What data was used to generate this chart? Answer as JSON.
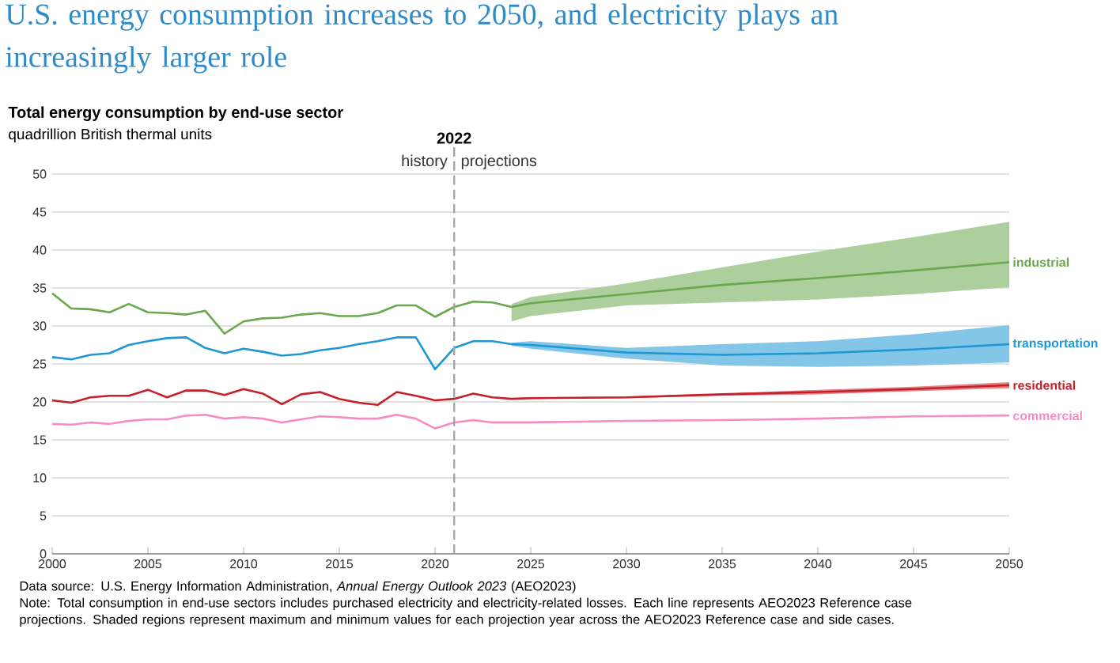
{
  "chart_data": {
    "type": "line",
    "title": "U.S. energy consumption increases to 2050, and electricity plays an increasingly larger role",
    "subtitle": "Total energy consumption by end-use sector",
    "x": [
      2000,
      2001,
      2002,
      2003,
      2004,
      2005,
      2006,
      2007,
      2008,
      2009,
      2010,
      2011,
      2012,
      2013,
      2014,
      2015,
      2016,
      2017,
      2018,
      2019,
      2020,
      2021,
      2022,
      2023,
      2024,
      2025,
      2030,
      2035,
      2040,
      2045,
      2050
    ],
    "series": [
      {
        "name": "industrial",
        "color": "#6aa84f",
        "values": [
          34.3,
          32.3,
          32.2,
          31.8,
          32.9,
          31.8,
          31.7,
          31.5,
          32.0,
          29.0,
          30.6,
          31.0,
          31.1,
          31.5,
          31.7,
          31.3,
          31.3,
          31.7,
          32.7,
          32.7,
          31.2,
          32.5,
          33.2,
          33.1,
          32.5,
          33.0,
          34.2,
          35.4,
          36.3,
          37.3,
          38.4
        ],
        "lower": [
          null,
          null,
          null,
          null,
          null,
          null,
          null,
          null,
          null,
          null,
          null,
          null,
          null,
          null,
          null,
          null,
          null,
          null,
          null,
          null,
          null,
          null,
          null,
          null,
          30.6,
          31.3,
          32.7,
          33.1,
          33.5,
          34.2,
          35.1
        ],
        "upper": [
          null,
          null,
          null,
          null,
          null,
          null,
          null,
          null,
          null,
          null,
          null,
          null,
          null,
          null,
          null,
          null,
          null,
          null,
          null,
          null,
          null,
          null,
          null,
          null,
          32.9,
          33.8,
          35.6,
          37.7,
          39.8,
          41.7,
          43.7
        ]
      },
      {
        "name": "transportation",
        "color": "#1f97d4",
        "values": [
          25.9,
          25.6,
          26.2,
          26.4,
          27.5,
          28.0,
          28.4,
          28.5,
          27.1,
          26.4,
          27.0,
          26.6,
          26.1,
          26.3,
          26.8,
          27.1,
          27.6,
          28.0,
          28.5,
          28.5,
          24.3,
          27.1,
          28.0,
          28.0,
          27.6,
          27.5,
          26.5,
          26.2,
          26.4,
          26.9,
          27.6
        ],
        "lower": [
          null,
          null,
          null,
          null,
          null,
          null,
          null,
          null,
          null,
          null,
          null,
          null,
          null,
          null,
          null,
          null,
          null,
          null,
          null,
          null,
          null,
          null,
          null,
          null,
          27.4,
          27.0,
          25.7,
          24.8,
          24.6,
          24.8,
          25.2
        ],
        "upper": [
          null,
          null,
          null,
          null,
          null,
          null,
          null,
          null,
          null,
          null,
          null,
          null,
          null,
          null,
          null,
          null,
          null,
          null,
          null,
          null,
          null,
          null,
          null,
          null,
          27.8,
          28.0,
          27.1,
          27.6,
          28.0,
          28.9,
          30.1
        ]
      },
      {
        "name": "residential",
        "color": "#c8202a",
        "values": [
          20.2,
          19.9,
          20.6,
          20.8,
          20.8,
          21.6,
          20.6,
          21.5,
          21.5,
          20.9,
          21.7,
          21.1,
          19.7,
          21.0,
          21.3,
          20.4,
          19.9,
          19.6,
          21.3,
          20.8,
          20.2,
          20.4,
          21.1,
          20.6,
          20.4,
          20.5,
          20.6,
          21.0,
          21.3,
          21.7,
          22.2
        ],
        "lower": [
          null,
          null,
          null,
          null,
          null,
          null,
          null,
          null,
          null,
          null,
          null,
          null,
          null,
          null,
          null,
          null,
          null,
          null,
          null,
          null,
          null,
          null,
          null,
          null,
          20.3,
          20.4,
          20.5,
          20.8,
          21.0,
          21.4,
          21.8
        ],
        "upper": [
          null,
          null,
          null,
          null,
          null,
          null,
          null,
          null,
          null,
          null,
          null,
          null,
          null,
          null,
          null,
          null,
          null,
          null,
          null,
          null,
          null,
          null,
          null,
          null,
          20.5,
          20.6,
          20.7,
          21.1,
          21.6,
          22.0,
          22.6
        ]
      },
      {
        "name": "commercial",
        "color": "#f78cc3",
        "values": [
          17.1,
          17.0,
          17.3,
          17.1,
          17.5,
          17.7,
          17.7,
          18.2,
          18.3,
          17.8,
          18.0,
          17.8,
          17.3,
          17.7,
          18.1,
          18.0,
          17.8,
          17.8,
          18.3,
          17.8,
          16.5,
          17.3,
          17.6,
          17.3,
          17.3,
          17.3,
          17.5,
          17.6,
          17.8,
          18.1,
          18.2
        ]
      }
    ],
    "xlim": [
      2000,
      2050
    ],
    "xticks": [
      2000,
      2005,
      2010,
      2015,
      2020,
      2025,
      2030,
      2035,
      2040,
      2045,
      2050
    ],
    "ylim": [
      0,
      50
    ],
    "yticks": [
      0,
      5,
      10,
      15,
      20,
      25,
      30,
      35,
      40,
      45,
      50
    ],
    "grid": "y",
    "ref_lines": [
      {
        "axis": "x",
        "value": 2021,
        "color": "#a6a6a6",
        "line_style": "dashed"
      }
    ],
    "annotations": [
      "quadrillion British thermal units",
      "2022",
      "history",
      "projections",
      "Data source: U.S. Energy Information Administration, *Annual Energy Outlook 2023* (AEO2023)",
      "Note: Total consumption in end-use sectors includes purchased electricity and electricity-related losses. Each line represents AEO2023 Reference case projections. Shaded regions represent maximum and minimum values for each projection year across the AEO2023 Reference case and side cases."
    ]
  }
}
